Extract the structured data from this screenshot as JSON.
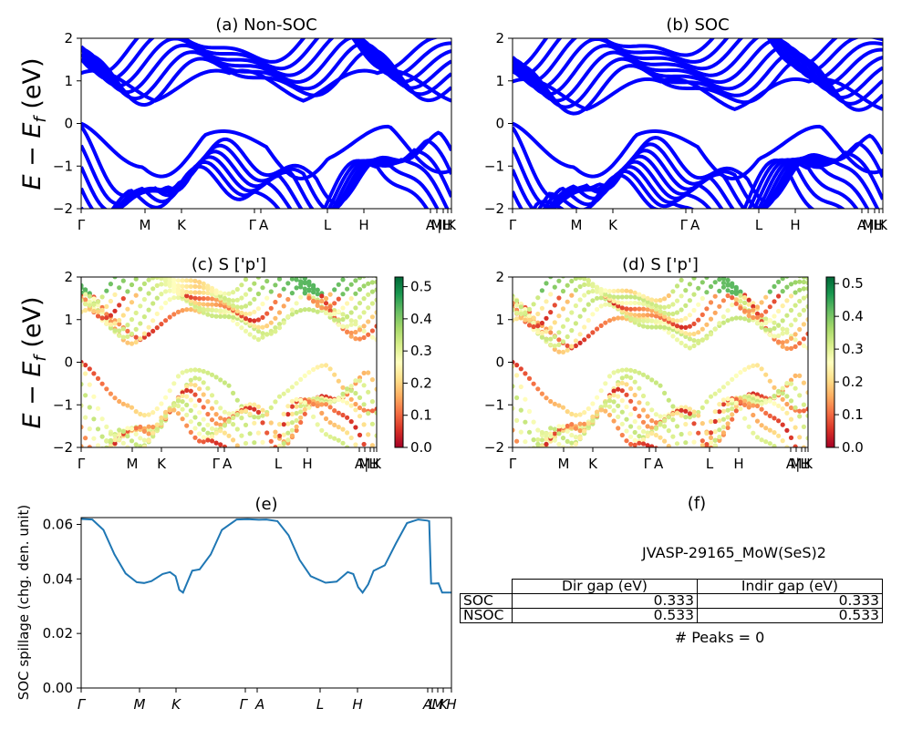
{
  "figure": {
    "ylabel": "E − E",
    "ylabel_sub": "f",
    "ylabel_unit": " (eV)",
    "colors": {
      "band": "#0000ff",
      "spillage": "#1f77b4"
    }
  },
  "chart_data": [
    {
      "id": "a",
      "type": "line",
      "title": "(a) Non-SOC",
      "xlabel": "",
      "ylabel": "E − E_f (eV)",
      "ylim": [
        -2,
        2
      ],
      "yticks": [
        -2,
        -1,
        0,
        1,
        2
      ],
      "kpath_ticks": [
        "Γ",
        "M",
        "K",
        "Γ",
        "A",
        "L",
        "H",
        "A",
        "M",
        "|L",
        "H",
        "K"
      ],
      "kpath_positions": [
        0,
        0.17,
        0.27,
        0.48,
        0.49,
        0.66,
        0.76,
        0.935,
        0.955,
        0.97,
        0.985,
        1.0
      ],
      "valence_max": 0.0,
      "conduction_min": 0.533,
      "band_count_shown": 14
    },
    {
      "id": "b",
      "type": "line",
      "title": "(b) SOC",
      "xlabel": "",
      "ylabel": "",
      "ylim": [
        -2,
        2
      ],
      "yticks": [
        -2,
        -1,
        0,
        1,
        2
      ],
      "kpath_ticks": [
        "Γ",
        "M",
        "K",
        "Γ",
        "A",
        "L",
        "H",
        "A",
        "M",
        "|L",
        "H",
        "K"
      ],
      "valence_max": 0.0,
      "conduction_min": 0.333,
      "band_count_shown": 18
    },
    {
      "id": "c",
      "type": "scatter",
      "title": "(c)  S ['p']",
      "ylim": [
        -2,
        2
      ],
      "yticks": [
        -2,
        -1,
        0,
        1,
        2
      ],
      "colorbar": {
        "range": [
          0,
          0.53
        ],
        "ticks": [
          "0.0",
          "0.1",
          "0.2",
          "0.3",
          "0.4",
          "0.5"
        ],
        "colormap": "RdYlGn"
      },
      "kpath_ticks": [
        "Γ",
        "M",
        "K",
        "Γ",
        "A",
        "L",
        "H",
        "A",
        "M",
        "|L",
        "H",
        "K"
      ]
    },
    {
      "id": "d",
      "type": "scatter",
      "title": "(d) S ['p']",
      "ylim": [
        -2,
        2
      ],
      "yticks": [
        -2,
        -1,
        0,
        1,
        2
      ],
      "colorbar": {
        "range": [
          0,
          0.52
        ],
        "ticks": [
          "0.0",
          "0.1",
          "0.2",
          "0.3",
          "0.4",
          "0.5"
        ],
        "colormap": "RdYlGn"
      },
      "kpath_ticks": [
        "Γ",
        "M",
        "K",
        "Γ",
        "A",
        "L",
        "H",
        "A",
        "M",
        "|L",
        "H",
        "K"
      ]
    },
    {
      "id": "e",
      "type": "line",
      "title": "(e)",
      "xlabel": "",
      "ylabel": "SOC spillage (chg. den. unit)",
      "ylim": [
        0,
        0.0625
      ],
      "yticks": [
        "0.00",
        "0.02",
        "0.04",
        "0.06"
      ],
      "kpath_ticks": [
        "Γ",
        "M",
        "K",
        "Γ",
        "A",
        "L",
        "H",
        "A",
        "L",
        "M",
        "K",
        "H"
      ],
      "x": [
        0,
        0.03,
        0.06,
        0.09,
        0.12,
        0.15,
        0.17,
        0.19,
        0.22,
        0.24,
        0.255,
        0.265,
        0.275,
        0.285,
        0.3,
        0.32,
        0.35,
        0.38,
        0.42,
        0.45,
        0.48,
        0.5,
        0.53,
        0.56,
        0.59,
        0.62,
        0.66,
        0.69,
        0.72,
        0.735,
        0.748,
        0.76,
        0.775,
        0.79,
        0.82,
        0.85,
        0.88,
        0.91,
        0.935,
        0.94,
        0.945,
        0.955,
        0.965,
        0.975,
        0.985,
        1.0
      ],
      "values": [
        0.062,
        0.0618,
        0.058,
        0.049,
        0.042,
        0.0388,
        0.0385,
        0.0392,
        0.0418,
        0.0425,
        0.041,
        0.036,
        0.035,
        0.0382,
        0.043,
        0.0435,
        0.049,
        0.058,
        0.0618,
        0.0619,
        0.0617,
        0.0618,
        0.0612,
        0.056,
        0.047,
        0.041,
        0.0386,
        0.039,
        0.0425,
        0.0418,
        0.037,
        0.035,
        0.038,
        0.043,
        0.045,
        0.053,
        0.0605,
        0.0618,
        0.0614,
        0.0612,
        0.0383,
        0.0383,
        0.0384,
        0.035,
        0.035,
        0.035
      ]
    }
  ],
  "panel_f": {
    "title": "(f)",
    "jid": "JVASP-29165_MoW(SeS)2",
    "table": {
      "headers": [
        "",
        "Dir gap (eV)",
        "Indir gap (eV)"
      ],
      "rows": [
        {
          "label": "SOC",
          "dir": "0.333",
          "indir": "0.333"
        },
        {
          "label": "NSOC",
          "dir": "0.533",
          "indir": "0.533"
        }
      ]
    },
    "peaks_text": "# Peaks = 0"
  }
}
